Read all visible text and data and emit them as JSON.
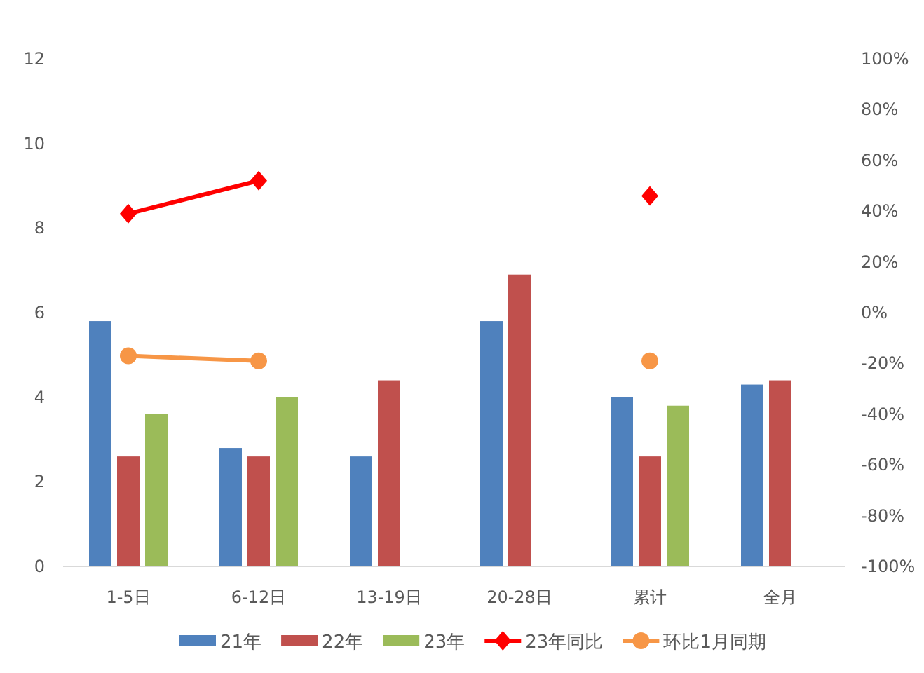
{
  "chart_data": {
    "type": "bar",
    "categories": [
      "1-5日",
      "6-12日",
      "13-19日",
      "20-28日",
      "累计",
      "全月"
    ],
    "series": [
      {
        "name": "21年",
        "color": "#4f81bd",
        "values": [
          5.8,
          2.8,
          2.6,
          5.8,
          4.0,
          4.3
        ]
      },
      {
        "name": "22年",
        "color": "#c0504d",
        "values": [
          2.6,
          2.6,
          4.4,
          6.9,
          2.6,
          4.4
        ]
      },
      {
        "name": "23年",
        "color": "#9bbb59",
        "values": [
          3.6,
          4.0,
          null,
          null,
          3.8,
          null
        ]
      },
      {
        "name": "23年同比",
        "type": "line",
        "axis": "y2",
        "marker": "diamond",
        "color": "#ff0000",
        "values": [
          39,
          52,
          null,
          null,
          46,
          null
        ]
      },
      {
        "name": "环比1月同期",
        "type": "line",
        "axis": "y2",
        "marker": "circle",
        "color": "#f79646",
        "values": [
          -17,
          -19,
          null,
          null,
          -19,
          null
        ]
      }
    ],
    "ylim": [
      0,
      12
    ],
    "yticks": [
      0,
      2,
      4,
      6,
      8,
      10,
      12
    ],
    "y2lim": [
      -100,
      100
    ],
    "y2ticks": [
      {
        "value": -100,
        "label": "-100%"
      },
      {
        "value": -80,
        "label": "-80%"
      },
      {
        "value": -60,
        "label": "-60%"
      },
      {
        "value": -40,
        "label": "-40%"
      },
      {
        "value": -20,
        "label": "-20%"
      },
      {
        "value": 0,
        "label": "0%"
      },
      {
        "value": 20,
        "label": "20%"
      },
      {
        "value": 40,
        "label": "40%"
      },
      {
        "value": 60,
        "label": "60%"
      },
      {
        "value": 80,
        "label": "80%"
      },
      {
        "value": 100,
        "label": "100%"
      }
    ],
    "grid": false,
    "legend": "bottom"
  }
}
